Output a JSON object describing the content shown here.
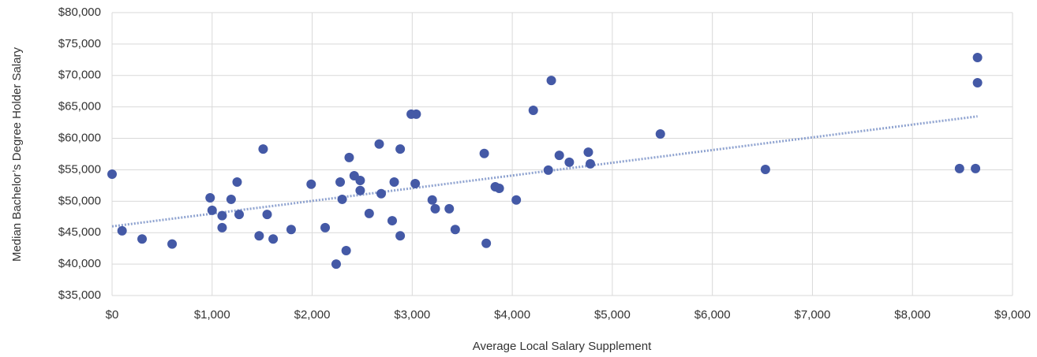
{
  "chart_data": {
    "type": "scatter",
    "x_label": "Average Local Salary Supplement",
    "y_label": "Median Bachelor’s Degree Holder Salary",
    "xlim": [
      0,
      9000
    ],
    "ylim": [
      35000,
      80000
    ],
    "xticks": [
      {
        "value": 0,
        "label": "$0"
      },
      {
        "value": 1000,
        "label": "$1,000"
      },
      {
        "value": 2000,
        "label": "$2,000"
      },
      {
        "value": 3000,
        "label": "$3,000"
      },
      {
        "value": 4000,
        "label": "$4,000"
      },
      {
        "value": 5000,
        "label": "$5,000"
      },
      {
        "value": 6000,
        "label": "$6,000"
      },
      {
        "value": 7000,
        "label": "$7,000"
      },
      {
        "value": 8000,
        "label": "$8,000"
      },
      {
        "value": 9000,
        "label": "$9,000"
      }
    ],
    "yticks": [
      {
        "value": 35000,
        "label": "$35,000"
      },
      {
        "value": 40000,
        "label": "$40,000"
      },
      {
        "value": 45000,
        "label": "$45,000"
      },
      {
        "value": 50000,
        "label": "$50,000"
      },
      {
        "value": 55000,
        "label": "$55,000"
      },
      {
        "value": 60000,
        "label": "$60,000"
      },
      {
        "value": 65000,
        "label": "$65,000"
      },
      {
        "value": 70000,
        "label": "$70,000"
      },
      {
        "value": 75000,
        "label": "$75,000"
      },
      {
        "value": 80000,
        "label": "$80,000"
      }
    ],
    "grid": true,
    "color": "#4459a6",
    "x": [
      0,
      100,
      300,
      600,
      980,
      1000,
      1100,
      1100,
      1190,
      1250,
      1270,
      1470,
      1510,
      1550,
      1610,
      1790,
      1990,
      2130,
      2240,
      2280,
      2300,
      2340,
      2370,
      2420,
      2480,
      2480,
      2570,
      2670,
      2690,
      2800,
      2820,
      2880,
      2880,
      2990,
      3040,
      3030,
      3200,
      3230,
      3370,
      3430,
      3720,
      3740,
      3830,
      3870,
      4040,
      4210,
      4360,
      4390,
      4470,
      4570,
      4760,
      4780,
      5480,
      6530,
      8470,
      8630,
      8650,
      8650
    ],
    "values": [
      54300,
      45300,
      44000,
      43200,
      50550,
      48550,
      47700,
      45800,
      50300,
      53050,
      47900,
      44500,
      58300,
      47900,
      44000,
      45500,
      52700,
      45800,
      40000,
      53050,
      50300,
      42150,
      56950,
      54050,
      53300,
      51700,
      48050,
      59100,
      51200,
      46900,
      53050,
      58300,
      44500,
      63850,
      63850,
      52800,
      50200,
      48800,
      48800,
      45500,
      57600,
      43300,
      52300,
      52050,
      50200,
      64450,
      54950,
      69200,
      57300,
      56200,
      57800,
      55950,
      60700,
      55050,
      55200,
      55200,
      72850,
      68850
    ],
    "trendline": {
      "color": "#8fa3d0",
      "x": [
        0,
        8650
      ],
      "values": [
        46000,
        63500
      ]
    }
  }
}
